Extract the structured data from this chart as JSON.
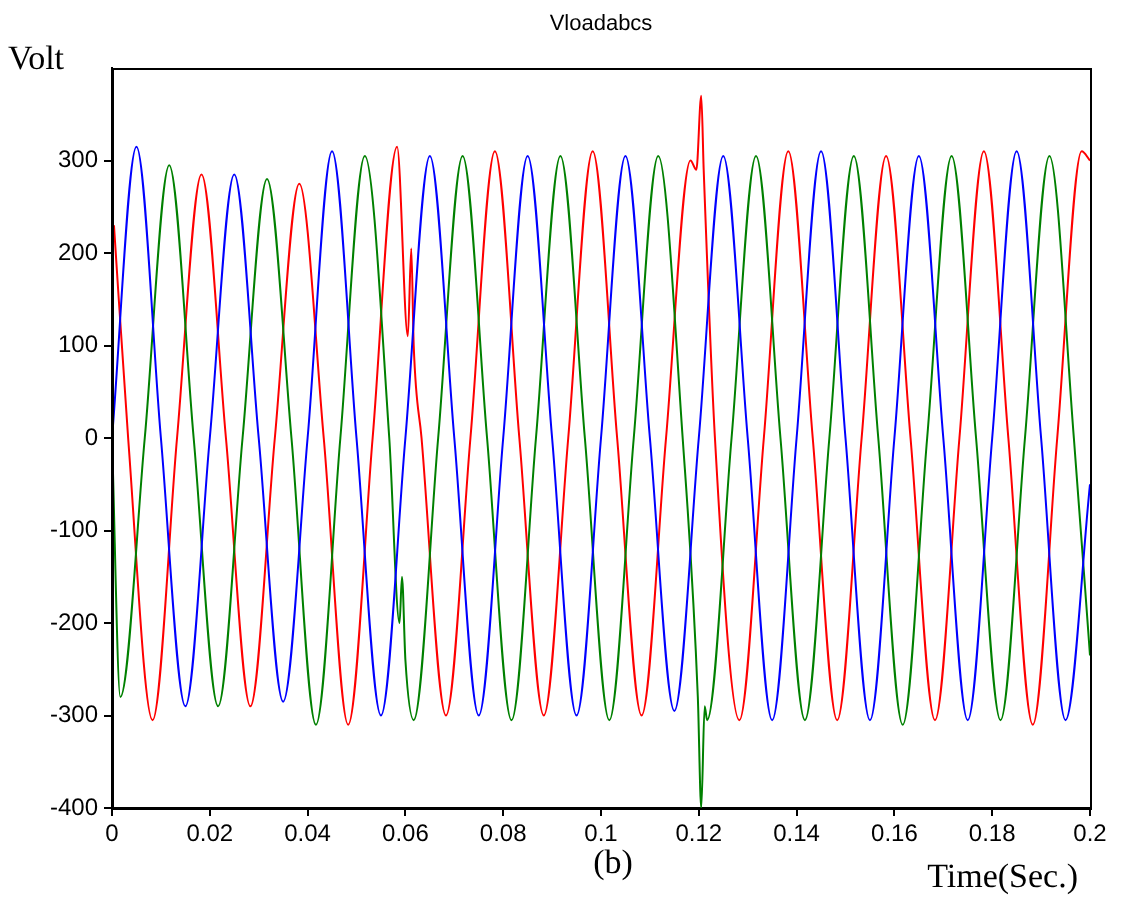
{
  "chart_data": {
    "type": "line",
    "title": "Vloadabcs",
    "xlabel": "Time(Sec.)",
    "ylabel": "Volt",
    "annotations": [
      "(b)"
    ],
    "xlim": [
      0,
      0.2
    ],
    "ylim": [
      -400,
      400
    ],
    "xticks": [
      0,
      0.02,
      0.04,
      0.06,
      0.08,
      0.1,
      0.12,
      0.14,
      0.16,
      0.18,
      0.2
    ],
    "yticks": [
      -400,
      -300,
      -200,
      -100,
      0,
      100,
      200,
      300
    ],
    "marker": "none",
    "line_style": "solid",
    "series": [
      {
        "color": "#0000ff",
        "x": [
          0,
          0.005,
          0.01,
          0.015,
          0.02,
          0.025,
          0.03,
          0.035,
          0.04,
          0.045,
          0.05,
          0.055,
          0.06,
          0.065,
          0.07,
          0.075,
          0.08,
          0.085,
          0.09,
          0.095,
          0.1,
          0.105,
          0.11,
          0.115,
          0.12,
          0.125,
          0.13,
          0.135,
          0.14,
          0.145,
          0.15,
          0.155,
          0.16,
          0.165,
          0.17,
          0.175,
          0.18,
          0.185,
          0.19,
          0.195,
          0.2
        ],
        "values": [
          0,
          315,
          0,
          -290,
          0,
          285,
          0,
          -285,
          0,
          310,
          0,
          -300,
          0,
          305,
          0,
          -300,
          0,
          305,
          0,
          -300,
          0,
          305,
          0,
          -295,
          0,
          305,
          0,
          -305,
          0,
          310,
          0,
          -305,
          0,
          305,
          0,
          -305,
          0,
          310,
          0,
          -305,
          -50
        ]
      },
      {
        "color": "#008000",
        "x": [
          0,
          0.0017,
          0.0067,
          0.0117,
          0.0167,
          0.0217,
          0.0267,
          0.0317,
          0.0367,
          0.0417,
          0.0467,
          0.0517,
          0.0567,
          0.0588,
          0.0593,
          0.06,
          0.0617,
          0.0667,
          0.0717,
          0.0767,
          0.0817,
          0.0867,
          0.0917,
          0.0967,
          0.1017,
          0.1067,
          0.1117,
          0.1167,
          0.1198,
          0.1205,
          0.1212,
          0.1217,
          0.1267,
          0.1317,
          0.1367,
          0.1417,
          0.1467,
          0.1517,
          0.1567,
          0.1617,
          0.1667,
          0.1717,
          0.1767,
          0.1817,
          0.1867,
          0.1917,
          0.1967,
          0.2
        ],
        "values": [
          0,
          -280,
          0,
          295,
          0,
          -290,
          0,
          280,
          0,
          -310,
          0,
          305,
          0,
          -200,
          -150,
          -240,
          -305,
          0,
          305,
          0,
          -305,
          0,
          305,
          0,
          -305,
          0,
          305,
          0,
          -280,
          -400,
          -290,
          -305,
          0,
          305,
          0,
          -305,
          0,
          305,
          0,
          -310,
          0,
          305,
          0,
          -305,
          0,
          305,
          0,
          -235
        ]
      },
      {
        "color": "#ff0000",
        "x": [
          0.0004,
          0.0033,
          0.0083,
          0.0133,
          0.0183,
          0.0233,
          0.0283,
          0.0333,
          0.0383,
          0.0433,
          0.0483,
          0.0533,
          0.0583,
          0.0605,
          0.0612,
          0.0617,
          0.0633,
          0.0683,
          0.0733,
          0.0783,
          0.0833,
          0.0883,
          0.0933,
          0.0983,
          0.1033,
          0.1083,
          0.1133,
          0.1183,
          0.1195,
          0.1205,
          0.121,
          0.1233,
          0.1283,
          0.1333,
          0.1383,
          0.1433,
          0.1483,
          0.1533,
          0.1583,
          0.1633,
          0.1683,
          0.1733,
          0.1783,
          0.1833,
          0.1883,
          0.1933,
          0.1983,
          0.2
        ],
        "values": [
          230,
          0,
          -305,
          0,
          285,
          0,
          -290,
          0,
          275,
          0,
          -310,
          0,
          315,
          110,
          205,
          100,
          0,
          -300,
          0,
          310,
          0,
          -300,
          0,
          310,
          0,
          -300,
          0,
          300,
          290,
          370,
          290,
          0,
          -305,
          0,
          310,
          0,
          -305,
          0,
          305,
          0,
          -305,
          0,
          310,
          0,
          -310,
          0,
          310,
          300
        ]
      }
    ]
  }
}
